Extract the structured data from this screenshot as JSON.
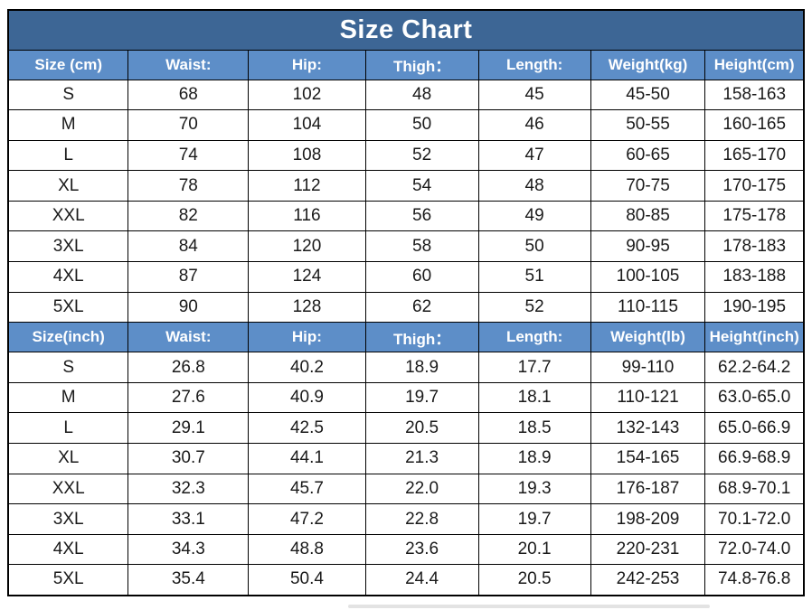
{
  "title": "Size Chart",
  "colors": {
    "title_bg": "#3d6695",
    "header_bg": "#5d8ec8",
    "header_text": "#ffffff",
    "cell_text": "#1a1a1a",
    "border": "#000000"
  },
  "chart_data": [
    {
      "type": "table",
      "title": "Size Chart",
      "unit": "cm",
      "columns": [
        "Size (cm)",
        "Waist:",
        "Hip:",
        "Thigh：",
        "Length:",
        "Weight(kg)",
        "Height(cm)"
      ],
      "rows": [
        [
          "S",
          "68",
          "102",
          "48",
          "45",
          "45-50",
          "158-163"
        ],
        [
          "M",
          "70",
          "104",
          "50",
          "46",
          "50-55",
          "160-165"
        ],
        [
          "L",
          "74",
          "108",
          "52",
          "47",
          "60-65",
          "165-170"
        ],
        [
          "XL",
          "78",
          "112",
          "54",
          "48",
          "70-75",
          "170-175"
        ],
        [
          "XXL",
          "82",
          "116",
          "56",
          "49",
          "80-85",
          "175-178"
        ],
        [
          "3XL",
          "84",
          "120",
          "58",
          "50",
          "90-95",
          "178-183"
        ],
        [
          "4XL",
          "87",
          "124",
          "60",
          "51",
          "100-105",
          "183-188"
        ],
        [
          "5XL",
          "90",
          "128",
          "62",
          "52",
          "110-115",
          "190-195"
        ]
      ]
    },
    {
      "type": "table",
      "unit": "inch",
      "columns": [
        "Size(inch)",
        "Waist:",
        "Hip:",
        "Thigh：",
        "Length:",
        "Weight(lb)",
        "Height(inch)"
      ],
      "rows": [
        [
          "S",
          "26.8",
          "40.2",
          "18.9",
          "17.7",
          "99-110",
          "62.2-64.2"
        ],
        [
          "M",
          "27.6",
          "40.9",
          "19.7",
          "18.1",
          "110-121",
          "63.0-65.0"
        ],
        [
          "L",
          "29.1",
          "42.5",
          "20.5",
          "18.5",
          "132-143",
          "65.0-66.9"
        ],
        [
          "XL",
          "30.7",
          "44.1",
          "21.3",
          "18.9",
          "154-165",
          "66.9-68.9"
        ],
        [
          "XXL",
          "32.3",
          "45.7",
          "22.0",
          "19.3",
          "176-187",
          "68.9-70.1"
        ],
        [
          "3XL",
          "33.1",
          "47.2",
          "22.8",
          "19.7",
          "198-209",
          "70.1-72.0"
        ],
        [
          "4XL",
          "34.3",
          "48.8",
          "23.6",
          "20.1",
          "220-231",
          "72.0-74.0"
        ],
        [
          "5XL",
          "35.4",
          "50.4",
          "24.4",
          "20.5",
          "242-253",
          "74.8-76.8"
        ]
      ]
    }
  ]
}
